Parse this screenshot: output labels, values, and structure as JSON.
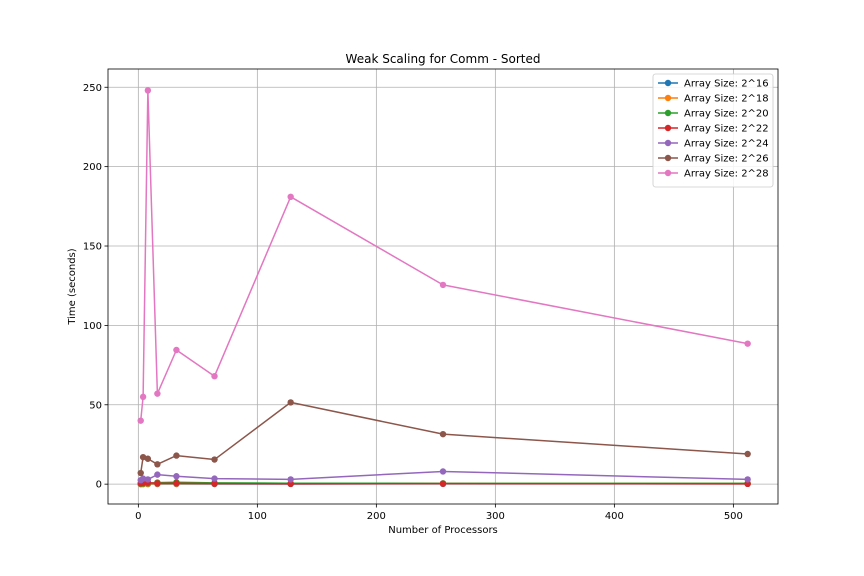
{
  "chart_data": {
    "type": "line",
    "title": "Weak Scaling for Comm - Sorted",
    "xlabel": "Number of Processors",
    "ylabel": "Time (seconds)",
    "xlim": [
      -25.5,
      537.5
    ],
    "ylim": [
      -12.5,
      261.5
    ],
    "xticks": [
      0,
      100,
      200,
      300,
      400,
      500
    ],
    "yticks": [
      0,
      50,
      100,
      150,
      200,
      250
    ],
    "grid": true,
    "legend_position": "top-right",
    "x": [
      2,
      4,
      8,
      16,
      32,
      64,
      128,
      256,
      512
    ],
    "series": [
      {
        "name": "Array Size: 2^16",
        "color": "#1f77b4",
        "values": [
          0.02,
          0.03,
          0.05,
          0.08,
          0.1,
          0.1,
          0.12,
          0.15,
          0.2
        ]
      },
      {
        "name": "Array Size: 2^18",
        "color": "#ff7f0e",
        "values": [
          0.05,
          0.1,
          0.2,
          0.3,
          0.3,
          0.3,
          0.4,
          0.4,
          0.5
        ]
      },
      {
        "name": "Array Size: 2^20",
        "color": "#2ca02c",
        "values": [
          0.3,
          0.4,
          0.6,
          1.0,
          1.2,
          0.8,
          0.6,
          0.5,
          0.5
        ]
      },
      {
        "name": "Array Size: 2^22",
        "color": "#d62728",
        "values": [
          0.5,
          0.8,
          1.0,
          0.5,
          0.6,
          0.3,
          0.2,
          0.3,
          0.2
        ]
      },
      {
        "name": "Array Size: 2^24",
        "color": "#9467bd",
        "values": [
          2.5,
          3.5,
          3.0,
          6.0,
          5.0,
          3.5,
          3.0,
          8.0,
          3.0
        ]
      },
      {
        "name": "Array Size: 2^26",
        "color": "#8c564b",
        "values": [
          7.0,
          17.0,
          16.0,
          12.5,
          18.0,
          15.5,
          51.5,
          31.5,
          19.0
        ]
      },
      {
        "name": "Array Size: 2^28",
        "color": "#e377c2",
        "values": [
          40.0,
          55.0,
          248.0,
          57.0,
          84.5,
          68.0,
          181.0,
          125.5,
          88.5
        ]
      }
    ]
  }
}
